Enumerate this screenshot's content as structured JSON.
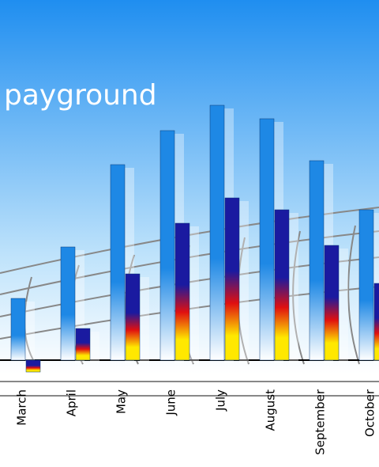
{
  "chart_data": {
    "type": "bar",
    "title": "payground",
    "categories": [
      "March",
      "April",
      "May",
      "June",
      "July",
      "August",
      "September",
      "October"
    ],
    "series": [
      {
        "color": "#1e88e5",
        "values": [
          78,
          143,
          247,
          290,
          322,
          305,
          252,
          190
        ]
      },
      {
        "color": "#1a1aa0",
        "values": [
          -15,
          40,
          109,
          173,
          205,
          190,
          145,
          97
        ]
      }
    ],
    "ylim": [
      -20,
      330
    ]
  }
}
